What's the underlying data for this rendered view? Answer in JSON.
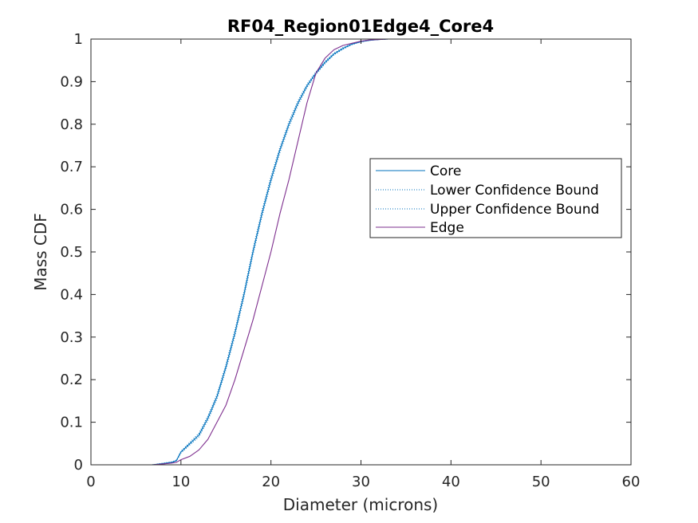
{
  "chart_data": {
    "type": "line",
    "title": "RF04_Region01Edge4_Core4",
    "xlabel": "Diameter (microns)",
    "ylabel": "Mass CDF",
    "xlim": [
      0,
      60
    ],
    "ylim": [
      0,
      1
    ],
    "xticks": [
      0,
      10,
      20,
      30,
      40,
      50,
      60
    ],
    "yticks": [
      0,
      0.1,
      0.2,
      0.3,
      0.4,
      0.5,
      0.6,
      0.7,
      0.8,
      0.9,
      1
    ],
    "grid": false,
    "legend_position": "center-right",
    "series": [
      {
        "name": "Core",
        "color": "#0072BD",
        "line_style": "solid",
        "x": [
          6.8,
          8,
          9,
          9.5,
          10,
          11,
          12,
          13,
          14,
          15,
          16,
          17,
          18,
          19,
          20,
          21,
          22,
          23,
          24,
          25,
          26,
          27,
          28,
          29,
          30,
          31,
          32,
          33,
          34,
          35,
          40,
          50,
          57
        ],
        "y": [
          0,
          0.003,
          0.006,
          0.01,
          0.03,
          0.05,
          0.07,
          0.11,
          0.16,
          0.23,
          0.31,
          0.4,
          0.5,
          0.59,
          0.67,
          0.74,
          0.8,
          0.85,
          0.89,
          0.92,
          0.945,
          0.965,
          0.978,
          0.988,
          0.994,
          0.997,
          0.999,
          1,
          1,
          1,
          1,
          1,
          1
        ]
      },
      {
        "name": "Lower Confidence Bound",
        "color": "#0072BD",
        "line_style": "dotted",
        "x": [
          6.8,
          8,
          9,
          9.5,
          10,
          11,
          12,
          13,
          14,
          15,
          16,
          17,
          18,
          19,
          20,
          21,
          22,
          23,
          24,
          25,
          26,
          27,
          28,
          29,
          30,
          31,
          32,
          33,
          34,
          35,
          40,
          50,
          57
        ],
        "y": [
          0,
          0.002,
          0.005,
          0.009,
          0.028,
          0.047,
          0.066,
          0.105,
          0.155,
          0.224,
          0.303,
          0.393,
          0.493,
          0.583,
          0.663,
          0.734,
          0.794,
          0.845,
          0.886,
          0.917,
          0.942,
          0.963,
          0.976,
          0.987,
          0.993,
          0.997,
          0.999,
          1,
          1,
          1,
          1,
          1,
          1
        ]
      },
      {
        "name": "Upper Confidence Bound",
        "color": "#0072BD",
        "line_style": "dotted",
        "x": [
          6.8,
          8,
          9,
          9.5,
          10,
          11,
          12,
          13,
          14,
          15,
          16,
          17,
          18,
          19,
          20,
          21,
          22,
          23,
          24,
          25,
          26,
          27,
          28,
          29,
          30,
          31,
          32,
          33,
          34,
          35,
          40,
          50,
          57
        ],
        "y": [
          0,
          0.004,
          0.007,
          0.011,
          0.032,
          0.053,
          0.074,
          0.115,
          0.165,
          0.236,
          0.317,
          0.407,
          0.507,
          0.597,
          0.677,
          0.746,
          0.806,
          0.855,
          0.894,
          0.923,
          0.948,
          0.967,
          0.98,
          0.989,
          0.995,
          0.998,
          0.999,
          1,
          1,
          1,
          1,
          1,
          1
        ]
      },
      {
        "name": "Edge",
        "color": "#7E2F8E",
        "line_style": "solid",
        "x": [
          6.8,
          8,
          9,
          9.5,
          10,
          11,
          12,
          13,
          14,
          15,
          16,
          17,
          18,
          19,
          20,
          21,
          22,
          23,
          24,
          25,
          26,
          27,
          28,
          29,
          30,
          31,
          32,
          33,
          34,
          35,
          40,
          50,
          57
        ],
        "y": [
          0,
          0.002,
          0.004,
          0.006,
          0.012,
          0.02,
          0.035,
          0.06,
          0.1,
          0.14,
          0.2,
          0.27,
          0.34,
          0.42,
          0.5,
          0.59,
          0.67,
          0.76,
          0.85,
          0.92,
          0.955,
          0.975,
          0.985,
          0.99,
          0.995,
          0.998,
          0.999,
          1,
          1,
          1,
          1,
          1,
          1
        ]
      }
    ]
  }
}
